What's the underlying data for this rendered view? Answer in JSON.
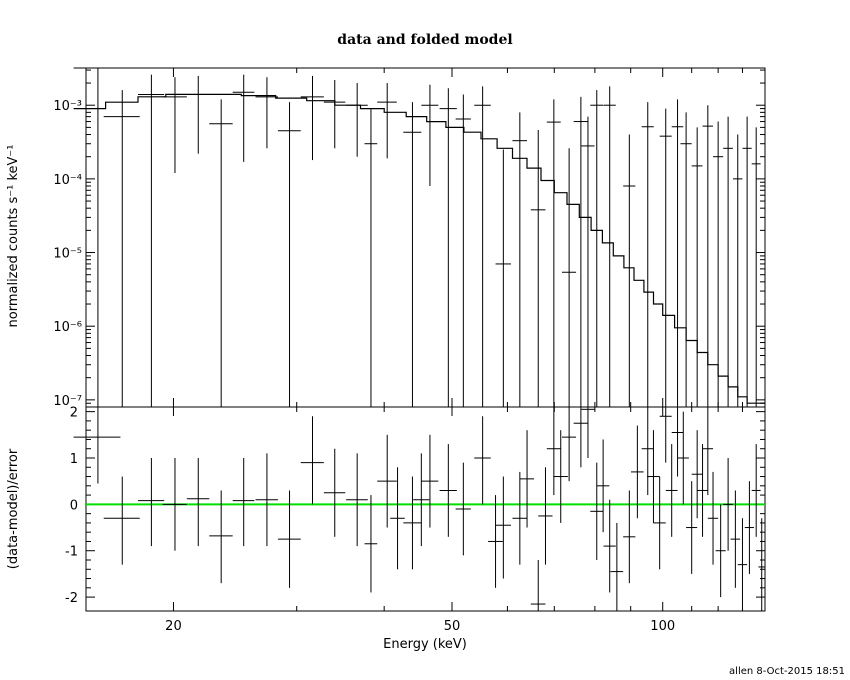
{
  "chart_data": [
    {
      "type": "scatter",
      "title": "data and folded model",
      "xlabel": "Energy (keV)",
      "ylabel": "normalized counts s⁻¹ keV⁻¹",
      "xscale": "log",
      "yscale": "log",
      "xlim": [
        15,
        140
      ],
      "ylim": [
        8e-08,
        0.0032
      ],
      "xticks": [
        {
          "value": 20,
          "label": "20"
        },
        {
          "value": 50,
          "label": "50"
        },
        {
          "value": 100,
          "label": "100"
        }
      ],
      "yticks": [
        {
          "value": 1e-07,
          "label": "10⁻⁷"
        },
        {
          "value": 1e-06,
          "label": "10⁻⁶"
        },
        {
          "value": 1e-05,
          "label": "10⁻⁵"
        },
        {
          "value": 0.0001,
          "label": "10⁻⁴"
        },
        {
          "value": 0.001,
          "label": "10⁻³"
        }
      ],
      "grid": false,
      "series": [
        {
          "kind": "data",
          "color": "#000000",
          "points": [
            [
              15.6,
              0.0032,
              14.4,
              16.8,
              0.0032,
              8e-08
            ],
            [
              16.9,
              0.0007,
              15.9,
              17.9,
              0.0016,
              8e-08
            ],
            [
              18.6,
              0.0014,
              17.8,
              19.4,
              0.0026,
              8e-08
            ],
            [
              20.1,
              0.0013,
              19.3,
              20.9,
              0.0024,
              0.00012
            ],
            [
              21.7,
              0.0014,
              20.9,
              22.5,
              0.0025,
              0.00022
            ],
            [
              23.4,
              0.00056,
              22.5,
              24.3,
              0.0012,
              8e-08
            ],
            [
              25.2,
              0.0015,
              24.3,
              26.1,
              0.0026,
              0.00017
            ],
            [
              27.2,
              0.0013,
              26.2,
              28.2,
              0.0024,
              0.00026
            ],
            [
              29.3,
              0.00045,
              28.2,
              30.4,
              0.0011,
              8e-08
            ],
            [
              31.6,
              0.0013,
              30.4,
              32.8,
              0.0025,
              0.00018
            ],
            [
              34.0,
              0.0011,
              32.8,
              35.2,
              0.0022,
              0.00026
            ],
            [
              36.6,
              0.001,
              35.3,
              37.9,
              0.002,
              0.0002
            ],
            [
              38.3,
              0.0003,
              37.5,
              39.1,
              0.0009,
              8e-08
            ],
            [
              40.4,
              0.0011,
              39.1,
              41.7,
              0.002,
              0.00019
            ],
            [
              43.9,
              0.00043,
              42.6,
              45.2,
              0.0011,
              8e-08
            ],
            [
              46.5,
              0.001,
              45.2,
              47.8,
              0.0019,
              8e-05
            ],
            [
              49.4,
              0.0009,
              48.0,
              50.8,
              0.0017,
              8e-08
            ],
            [
              51.9,
              0.00065,
              50.6,
              53.2,
              0.0014,
              8e-08
            ],
            [
              55.3,
              0.001,
              53.8,
              56.8,
              0.0018,
              8e-08
            ],
            [
              59.2,
              7e-06,
              57.7,
              60.7,
              0.00025,
              8e-08
            ],
            [
              62.5,
              0.00033,
              61.0,
              64.0,
              0.0008,
              8e-08
            ],
            [
              66.4,
              3.8e-05,
              64.8,
              68.0,
              0.00046,
              8e-08
            ],
            [
              69.9,
              0.00059,
              68.3,
              71.5,
              0.0012,
              8e-08
            ],
            [
              73.5,
              5.4e-06,
              71.8,
              75.2,
              0.00026,
              8e-08
            ],
            [
              76.4,
              0.0006,
              74.6,
              78.2,
              0.0013,
              8e-08
            ],
            [
              78.2,
              0.00028,
              76.5,
              79.9,
              0.0007,
              8e-08
            ],
            [
              80.5,
              0.001,
              78.8,
              82.2,
              0.0016,
              8e-08
            ],
            [
              84.0,
              0.001,
              82.3,
              85.7,
              0.0018,
              8e-08
            ],
            [
              89.6,
              8e-05,
              87.8,
              91.4,
              0.0004,
              8e-08
            ],
            [
              95.2,
              0.00051,
              93.3,
              97.1,
              0.0011,
              8e-08
            ],
            [
              101.0,
              0.00038,
              99.0,
              103.0,
              0.0009,
              8e-08
            ],
            [
              105.0,
              0.00051,
              103.0,
              107.0,
              0.0012,
              8e-08
            ],
            [
              108.0,
              0.0003,
              106.0,
              110.0,
              0.0008,
              8e-08
            ],
            [
              112.0,
              0.00015,
              110.0,
              114.0,
              0.0005,
              8e-08
            ],
            [
              116.0,
              0.00052,
              114.0,
              118.0,
              0.001,
              8e-08
            ],
            [
              120.0,
              0.0002,
              118.0,
              122.0,
              0.0006,
              8e-08
            ],
            [
              124.0,
              0.00026,
              122.0,
              126.0,
              0.0007,
              8e-08
            ],
            [
              128.0,
              0.0001,
              126.0,
              130.0,
              0.0004,
              8e-08
            ],
            [
              132.0,
              0.00026,
              130.0,
              134.0,
              0.0007,
              8e-08
            ],
            [
              136.0,
              0.00016,
              134.0,
              138.0,
              0.0005,
              8e-08
            ]
          ]
        },
        {
          "kind": "model",
          "color": "#000000",
          "steps": [
            [
              14.4,
              0.0009
            ],
            [
              16.0,
              0.0011
            ],
            [
              17.8,
              0.0013
            ],
            [
              19.5,
              0.0014
            ],
            [
              22.0,
              0.0014
            ],
            [
              25.0,
              0.00135
            ],
            [
              28.0,
              0.00125
            ],
            [
              31.0,
              0.00115
            ],
            [
              34.0,
              0.001
            ],
            [
              37.0,
              0.0009
            ],
            [
              40.0,
              0.0008
            ],
            [
              43.0,
              0.0007
            ],
            [
              46.0,
              0.0006
            ],
            [
              49.0,
              0.0005
            ],
            [
              52.0,
              0.00043
            ],
            [
              55.0,
              0.00035
            ],
            [
              58.0,
              0.00026
            ],
            [
              61.0,
              0.00019
            ],
            [
              64.0,
              0.00014
            ],
            [
              67.0,
              9.5e-05
            ],
            [
              70.0,
              6.5e-05
            ],
            [
              73.0,
              4.5e-05
            ],
            [
              76.0,
              3e-05
            ],
            [
              79.0,
              2e-05
            ],
            [
              82.0,
              1.35e-05
            ],
            [
              85.0,
              9e-06
            ],
            [
              88.0,
              6.2e-06
            ],
            [
              91.0,
              4.2e-06
            ],
            [
              94.0,
              2.9e-06
            ],
            [
              97.0,
              2e-06
            ],
            [
              100.0,
              1.4e-06
            ],
            [
              104.0,
              9.5e-07
            ],
            [
              108.0,
              6.4e-07
            ],
            [
              112.0,
              4.4e-07
            ],
            [
              116.0,
              3e-07
            ],
            [
              120.0,
              2.1e-07
            ],
            [
              124.0,
              1.5e-07
            ],
            [
              128.0,
              1.1e-07
            ],
            [
              132.0,
              9e-08
            ],
            [
              140.0,
              8e-08
            ]
          ]
        }
      ]
    },
    {
      "type": "scatter",
      "xlabel": "Energy (keV)",
      "ylabel": "(data-model)/error",
      "xscale": "log",
      "xlim": [
        15,
        140
      ],
      "ylim": [
        -2.3,
        2.1
      ],
      "xticks": [
        {
          "value": 20,
          "label": "20"
        },
        {
          "value": 50,
          "label": "50"
        },
        {
          "value": 100,
          "label": "100"
        }
      ],
      "yticks": [
        {
          "value": 2,
          "label": "2"
        },
        {
          "value": 1,
          "label": "1"
        },
        {
          "value": 0,
          "label": "0"
        },
        {
          "value": -1,
          "label": "-1"
        },
        {
          "value": -2,
          "label": "-2"
        }
      ],
      "reference_line": {
        "value": 0,
        "color": "#00e000"
      },
      "series": [
        {
          "kind": "residuals",
          "color": "#000000",
          "points": [
            [
              15.6,
              1.45,
              14.4,
              16.8,
              2.1,
              0.45
            ],
            [
              16.9,
              -0.3,
              15.9,
              17.9,
              0.6,
              -1.3
            ],
            [
              18.6,
              0.08,
              17.8,
              19.4,
              1.0,
              -0.9
            ],
            [
              20.1,
              0.0,
              19.3,
              20.9,
              1.0,
              -1.0
            ],
            [
              21.7,
              0.12,
              20.9,
              22.5,
              1.0,
              -0.9
            ],
            [
              23.4,
              -0.68,
              22.5,
              24.3,
              0.3,
              -1.7
            ],
            [
              25.2,
              0.08,
              24.3,
              26.1,
              1.0,
              -0.9
            ],
            [
              27.2,
              0.1,
              26.2,
              28.2,
              1.1,
              -0.9
            ],
            [
              29.3,
              -0.75,
              28.2,
              30.4,
              0.3,
              -1.8
            ],
            [
              31.6,
              0.9,
              30.4,
              32.8,
              1.9,
              0.0
            ],
            [
              34.0,
              0.25,
              32.8,
              35.2,
              1.2,
              -0.7
            ],
            [
              36.6,
              0.1,
              35.3,
              37.9,
              1.1,
              -0.9
            ],
            [
              38.3,
              -0.85,
              37.5,
              39.1,
              0.2,
              -1.9
            ],
            [
              40.4,
              0.5,
              39.1,
              41.7,
              1.5,
              -0.5
            ],
            [
              41.8,
              -0.3,
              40.8,
              42.8,
              0.8,
              -1.4
            ],
            [
              43.9,
              -0.4,
              42.6,
              45.2,
              0.6,
              -1.4
            ],
            [
              45.2,
              0.1,
              44.0,
              46.4,
              1.1,
              -0.9
            ],
            [
              46.5,
              0.5,
              45.2,
              47.8,
              1.5,
              -0.5
            ],
            [
              49.4,
              0.3,
              48.0,
              50.8,
              1.3,
              -0.7
            ],
            [
              51.9,
              -0.1,
              50.6,
              53.2,
              0.9,
              -1.1
            ],
            [
              55.3,
              1.0,
              53.8,
              56.8,
              1.9,
              0.0
            ],
            [
              57.7,
              -0.8,
              56.3,
              59.1,
              0.2,
              -1.8
            ],
            [
              59.2,
              -0.45,
              57.7,
              60.7,
              0.6,
              -1.6
            ],
            [
              62.5,
              -0.3,
              61.0,
              64.0,
              0.7,
              -1.3
            ],
            [
              64.0,
              0.55,
              62.5,
              65.5,
              1.6,
              -0.5
            ],
            [
              66.4,
              -2.15,
              64.8,
              68.0,
              -1.2,
              -2.3
            ],
            [
              68.0,
              -0.25,
              66.4,
              69.6,
              0.8,
              -1.3
            ],
            [
              69.9,
              1.2,
              68.3,
              71.5,
              2.1,
              0.2
            ],
            [
              71.5,
              0.6,
              69.8,
              73.2,
              1.6,
              -0.4
            ],
            [
              73.5,
              1.45,
              71.8,
              75.2,
              2.1,
              0.5
            ],
            [
              76.4,
              1.75,
              74.6,
              78.2,
              2.1,
              0.8
            ],
            [
              78.2,
              2.05,
              76.5,
              79.9,
              2.1,
              1.0
            ],
            [
              80.5,
              -0.15,
              78.8,
              82.2,
              0.9,
              -1.2
            ],
            [
              82.2,
              0.4,
              80.5,
              83.9,
              1.4,
              -0.6
            ],
            [
              84.0,
              -0.9,
              82.3,
              85.7,
              0.1,
              -1.9
            ],
            [
              86.0,
              -1.45,
              84.2,
              87.8,
              -0.4,
              -2.3
            ],
            [
              89.6,
              -0.7,
              87.8,
              91.4,
              0.3,
              -1.7
            ],
            [
              92.0,
              0.7,
              90.1,
              93.9,
              1.7,
              -0.3
            ],
            [
              95.2,
              1.2,
              93.3,
              97.1,
              2.1,
              0.2
            ],
            [
              97.0,
              0.6,
              95.0,
              99.0,
              1.6,
              -0.4
            ],
            [
              99.0,
              -0.4,
              97.0,
              101.0,
              0.6,
              -1.4
            ],
            [
              101.0,
              1.9,
              99.0,
              103.0,
              2.1,
              0.9
            ],
            [
              103.0,
              0.3,
              101.0,
              105.0,
              1.3,
              -0.7
            ],
            [
              105.0,
              1.55,
              103.0,
              107.0,
              2.1,
              0.6
            ],
            [
              107.0,
              1.0,
              105.0,
              109.0,
              2.0,
              0.0
            ],
            [
              110.0,
              -0.5,
              108.0,
              112.0,
              0.5,
              -1.5
            ],
            [
              112.0,
              0.65,
              110.0,
              114.0,
              1.6,
              -0.3
            ],
            [
              114.0,
              0.3,
              112.0,
              116.0,
              1.3,
              -0.7
            ],
            [
              116.0,
              1.2,
              114.0,
              118.0,
              2.1,
              0.2
            ],
            [
              118.0,
              -0.3,
              116.0,
              120.0,
              0.7,
              -1.3
            ],
            [
              121.0,
              -1.0,
              119.0,
              123.0,
              0.0,
              -2.0
            ],
            [
              124.0,
              0.0,
              122.0,
              126.0,
              1.0,
              -1.0
            ],
            [
              127.0,
              -0.75,
              125.0,
              129.0,
              0.3,
              -1.8
            ],
            [
              130.0,
              -1.3,
              128.0,
              132.0,
              -0.3,
              -2.2
            ],
            [
              133.0,
              -0.5,
              131.0,
              135.0,
              0.5,
              -1.5
            ],
            [
              136.0,
              0.3,
              134.0,
              138.0,
              1.3,
              -0.7
            ],
            [
              138.5,
              -1.35,
              137.0,
              140.0,
              -0.3,
              -2.3
            ]
          ]
        }
      ]
    }
  ],
  "footer": {
    "text": "allen  8-Oct-2015 18:51"
  }
}
